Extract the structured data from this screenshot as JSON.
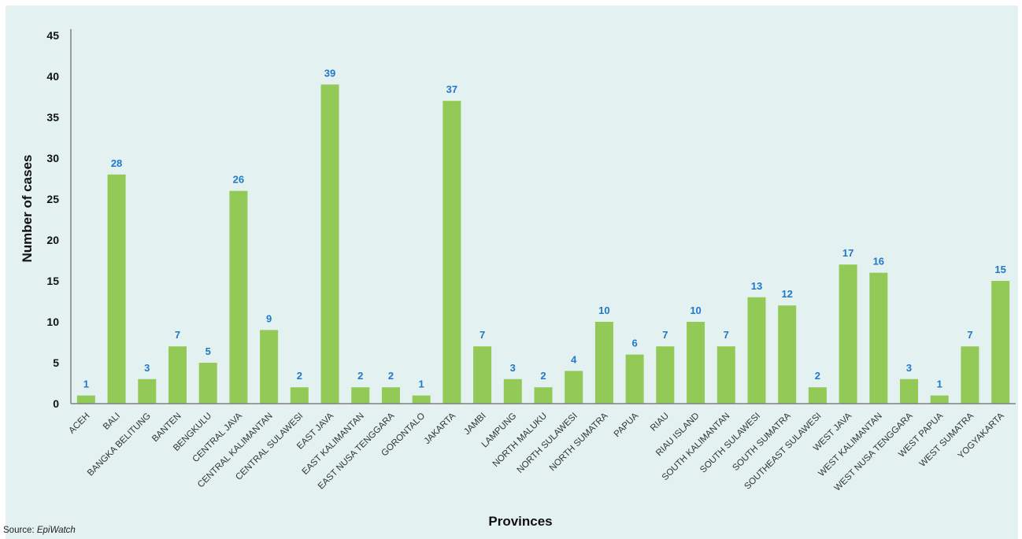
{
  "chart_data": {
    "type": "bar",
    "title": "",
    "xlabel": "Provinces",
    "ylabel": "Number of cases",
    "ylim": [
      0,
      45
    ],
    "yticks": [
      0,
      5,
      10,
      15,
      20,
      25,
      30,
      35,
      40,
      45
    ],
    "grid": false,
    "categories": [
      "ACEH",
      "BALI",
      "BANGKA BELITUNG",
      "BANTEN",
      "BENGKULU",
      "CENTRAL JAVA",
      "CENTRAL KALIMANTAN",
      "CENTRAL SULAWESI",
      "EAST JAVA",
      "EAST KALIMANTAN",
      "EAST NUSA TENGGARA",
      "GORONTALO",
      "JAKARTA",
      "JAMBI",
      "LAMPUNG",
      "NORTH MALUKU",
      "NORTH SULAWESI",
      "NORTH SUMATRA",
      "PAPUA",
      "RIAU",
      "RIAU ISLAND",
      "SOUTH KALIMANTAN",
      "SOUTH SULAWESI",
      "SOUTH SUMATRA",
      "SOUTHEAST SULAWESI",
      "WEST JAVA",
      "WEST KALIMANTAN",
      "WEST NUSA TENGGARA",
      "WEST PAPUA",
      "WEST SUMATRA",
      "YOGYAKARTA"
    ],
    "values": [
      1,
      28,
      3,
      7,
      5,
      26,
      9,
      2,
      39,
      2,
      2,
      1,
      37,
      7,
      3,
      2,
      4,
      10,
      6,
      7,
      10,
      7,
      13,
      12,
      2,
      17,
      16,
      3,
      1,
      7,
      15
    ],
    "bar_color": "#92c957",
    "label_color": "#1f78c8",
    "background_color": "#e3f1f1"
  },
  "source": {
    "prefix": "Source: ",
    "name": "EpiWatch"
  }
}
